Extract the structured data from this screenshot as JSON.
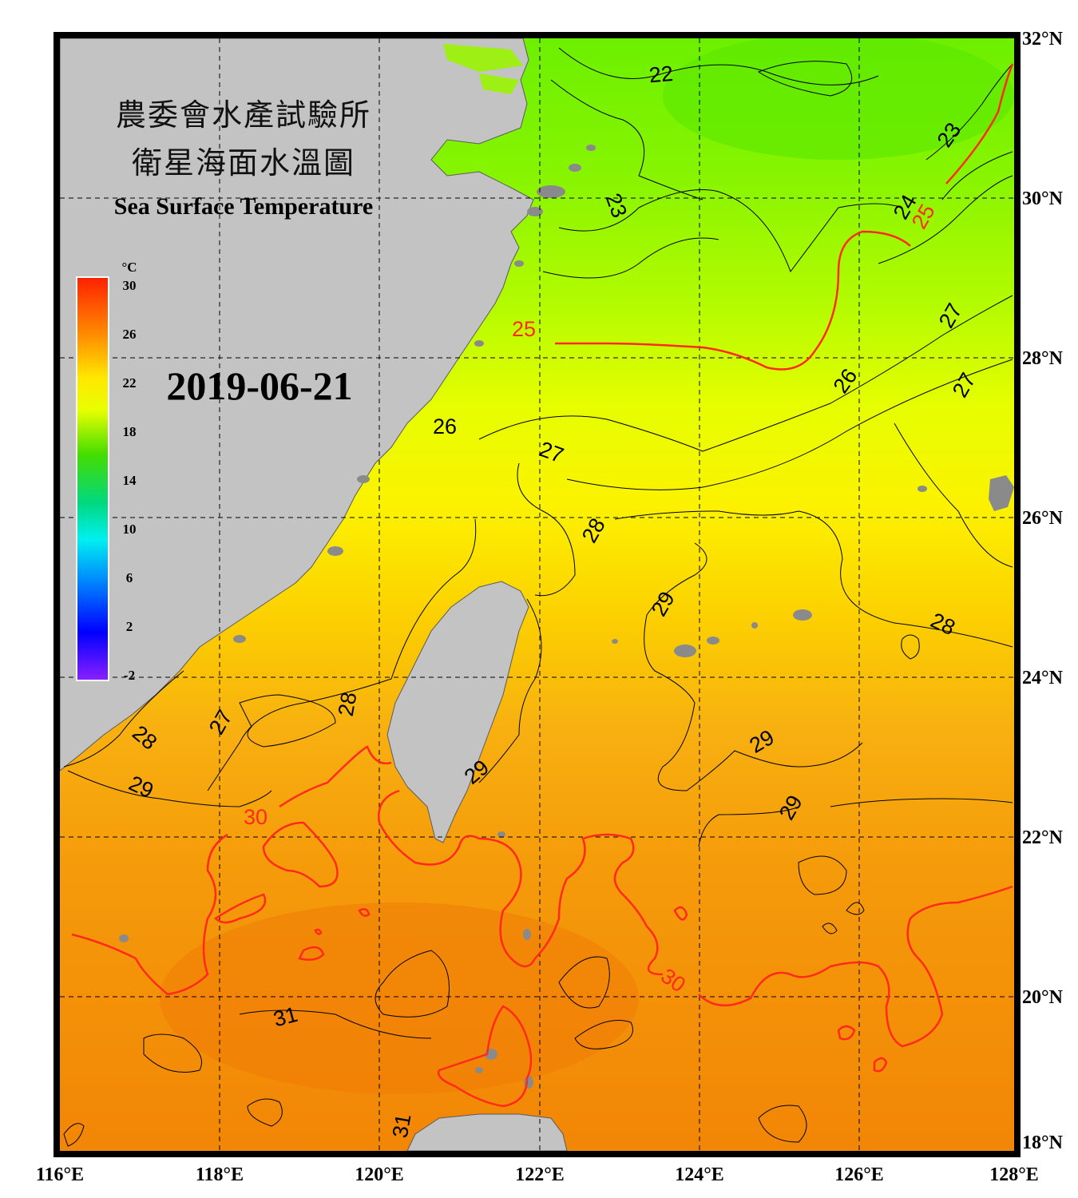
{
  "title": {
    "zh_line1": "農委會水產試驗所",
    "zh_line2": "衛星海面水溫圖",
    "en": "Sea Surface Temperature"
  },
  "date": "2019-06-21",
  "colorbar": {
    "unit": "°C",
    "ticks": [
      "30",
      "26",
      "22",
      "18",
      "14",
      "10",
      "6",
      "2",
      "-2"
    ],
    "range": [
      -2,
      30
    ]
  },
  "map": {
    "lon_range": [
      116,
      128
    ],
    "lat_range": [
      18,
      32
    ],
    "lon_labels": [
      "116°E",
      "118°E",
      "120°E",
      "122°E",
      "124°E",
      "126°E",
      "128°E"
    ],
    "lat_labels": [
      "32°N",
      "30°N",
      "28°N",
      "26°N",
      "24°N",
      "22°N",
      "20°N",
      "18°N"
    ],
    "gridlines": true,
    "colors": {
      "land": "#c3c3c3",
      "frame": "#000000",
      "isotherm_25_30": "#ff2a1a",
      "isotherm_other": "#000000",
      "sst_cold": "#66f000",
      "sst_warm": "#f28a08"
    },
    "contour_labels": [
      "22",
      "23",
      "23",
      "24",
      "25",
      "25",
      "26",
      "26",
      "27",
      "27",
      "27",
      "27",
      "28",
      "28",
      "28",
      "28",
      "29",
      "29",
      "29",
      "29",
      "29",
      "30",
      "30",
      "31",
      "31"
    ]
  }
}
